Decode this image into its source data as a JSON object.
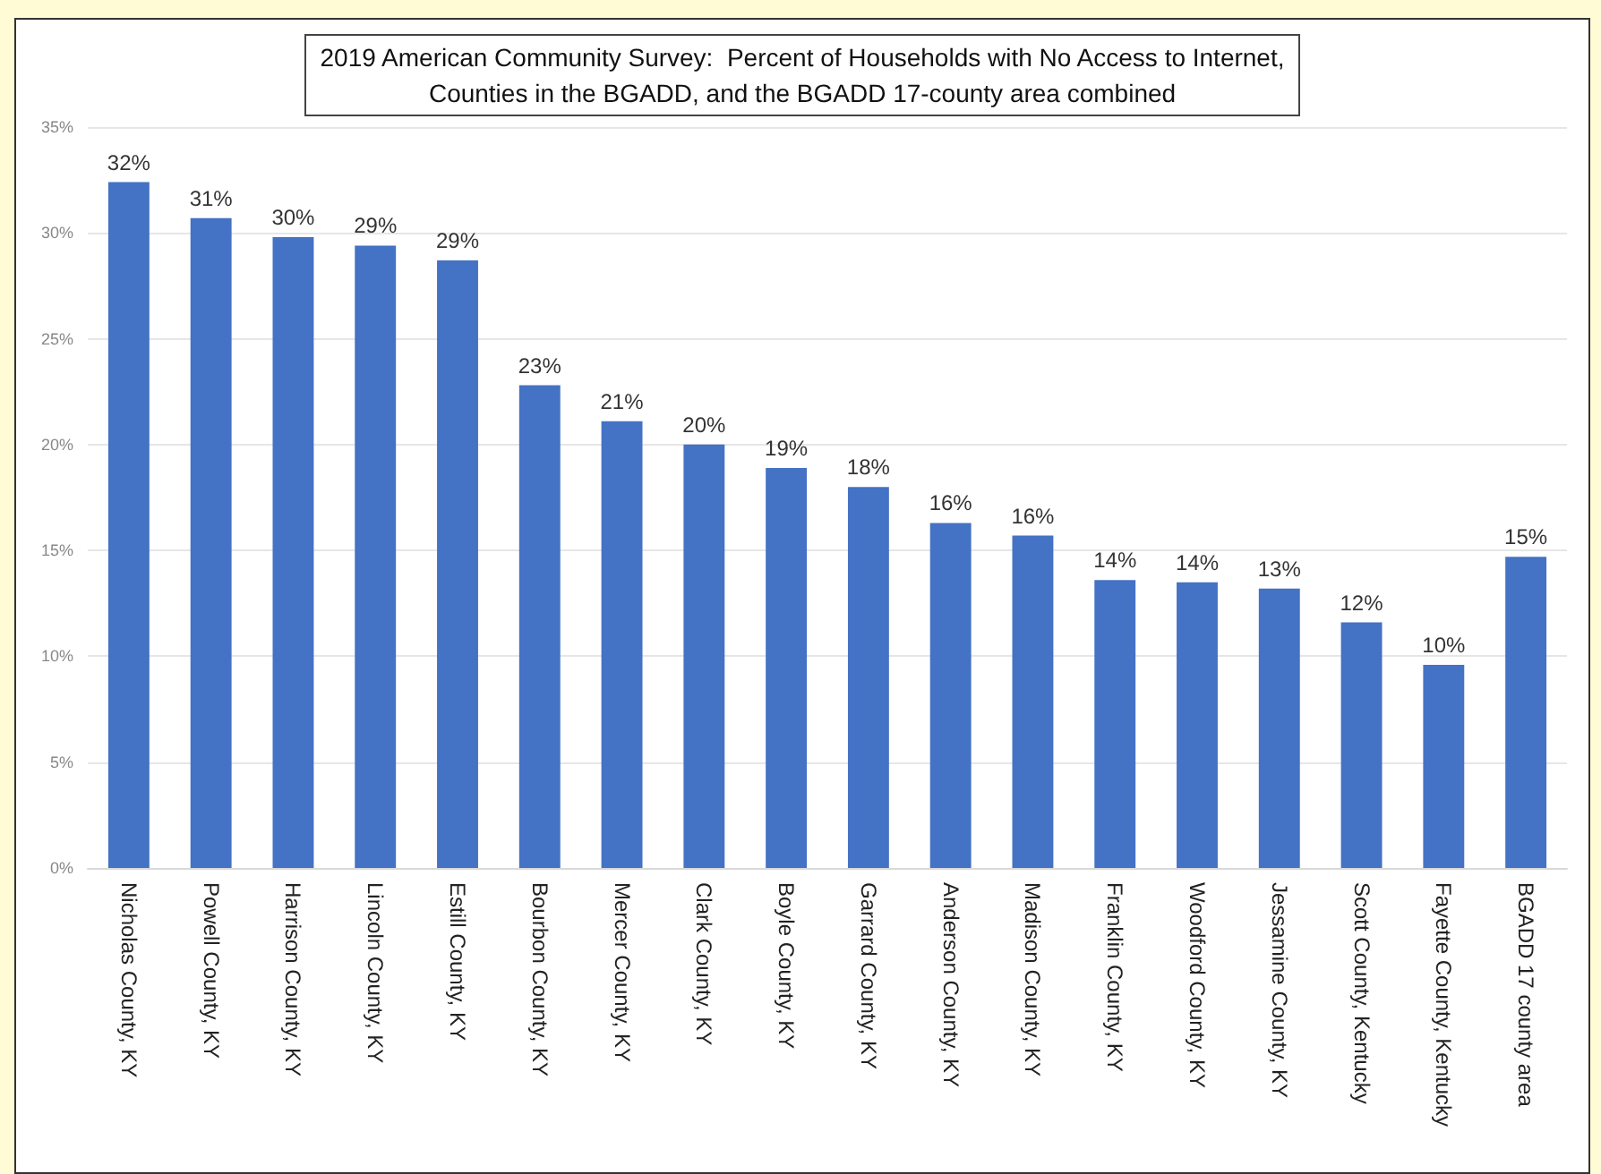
{
  "chart_data": {
    "type": "bar",
    "title": "2019 American Community Survey:  Percent of Households with No Access to Internet,\nCounties in the BGADD, and the BGADD 17-county area combined",
    "categories": [
      "Nicholas County, KY",
      "Powell County, KY",
      "Harrison County, KY",
      "Lincoln County, KY",
      "Estill County, KY",
      "Bourbon County, KY",
      "Mercer County, KY",
      "Clark County, KY",
      "Boyle County, KY",
      "Garrard County, KY",
      "Anderson County, KY",
      "Madison County, KY",
      "Franklin County, KY",
      "Woodford County, KY",
      "Jessamine County, KY",
      "Scott County, Kentucky",
      "Fayette County, Kentucky",
      "BGADD 17 county area"
    ],
    "values": [
      32.4,
      30.7,
      29.8,
      29.4,
      28.7,
      22.8,
      21.1,
      20.0,
      18.9,
      18.0,
      16.3,
      15.7,
      13.6,
      13.5,
      13.2,
      11.6,
      9.6,
      14.7
    ],
    "value_labels": [
      "32%",
      "31%",
      "30%",
      "29%",
      "29%",
      "23%",
      "21%",
      "20%",
      "19%",
      "18%",
      "16%",
      "16%",
      "14%",
      "14%",
      "13%",
      "12%",
      "10%",
      "15%"
    ],
    "color": "#4472c4",
    "ylim": [
      0,
      35
    ],
    "yticks": [
      {
        "value": 0,
        "label": "0%"
      },
      {
        "value": 5,
        "label": "5%"
      },
      {
        "value": 10,
        "label": "10%"
      },
      {
        "value": 15,
        "label": "15%"
      },
      {
        "value": 20,
        "label": "20%"
      },
      {
        "value": 25,
        "label": "25%"
      },
      {
        "value": 30,
        "label": "30%"
      },
      {
        "value": 35,
        "label": "35%"
      }
    ],
    "grid": "y"
  }
}
